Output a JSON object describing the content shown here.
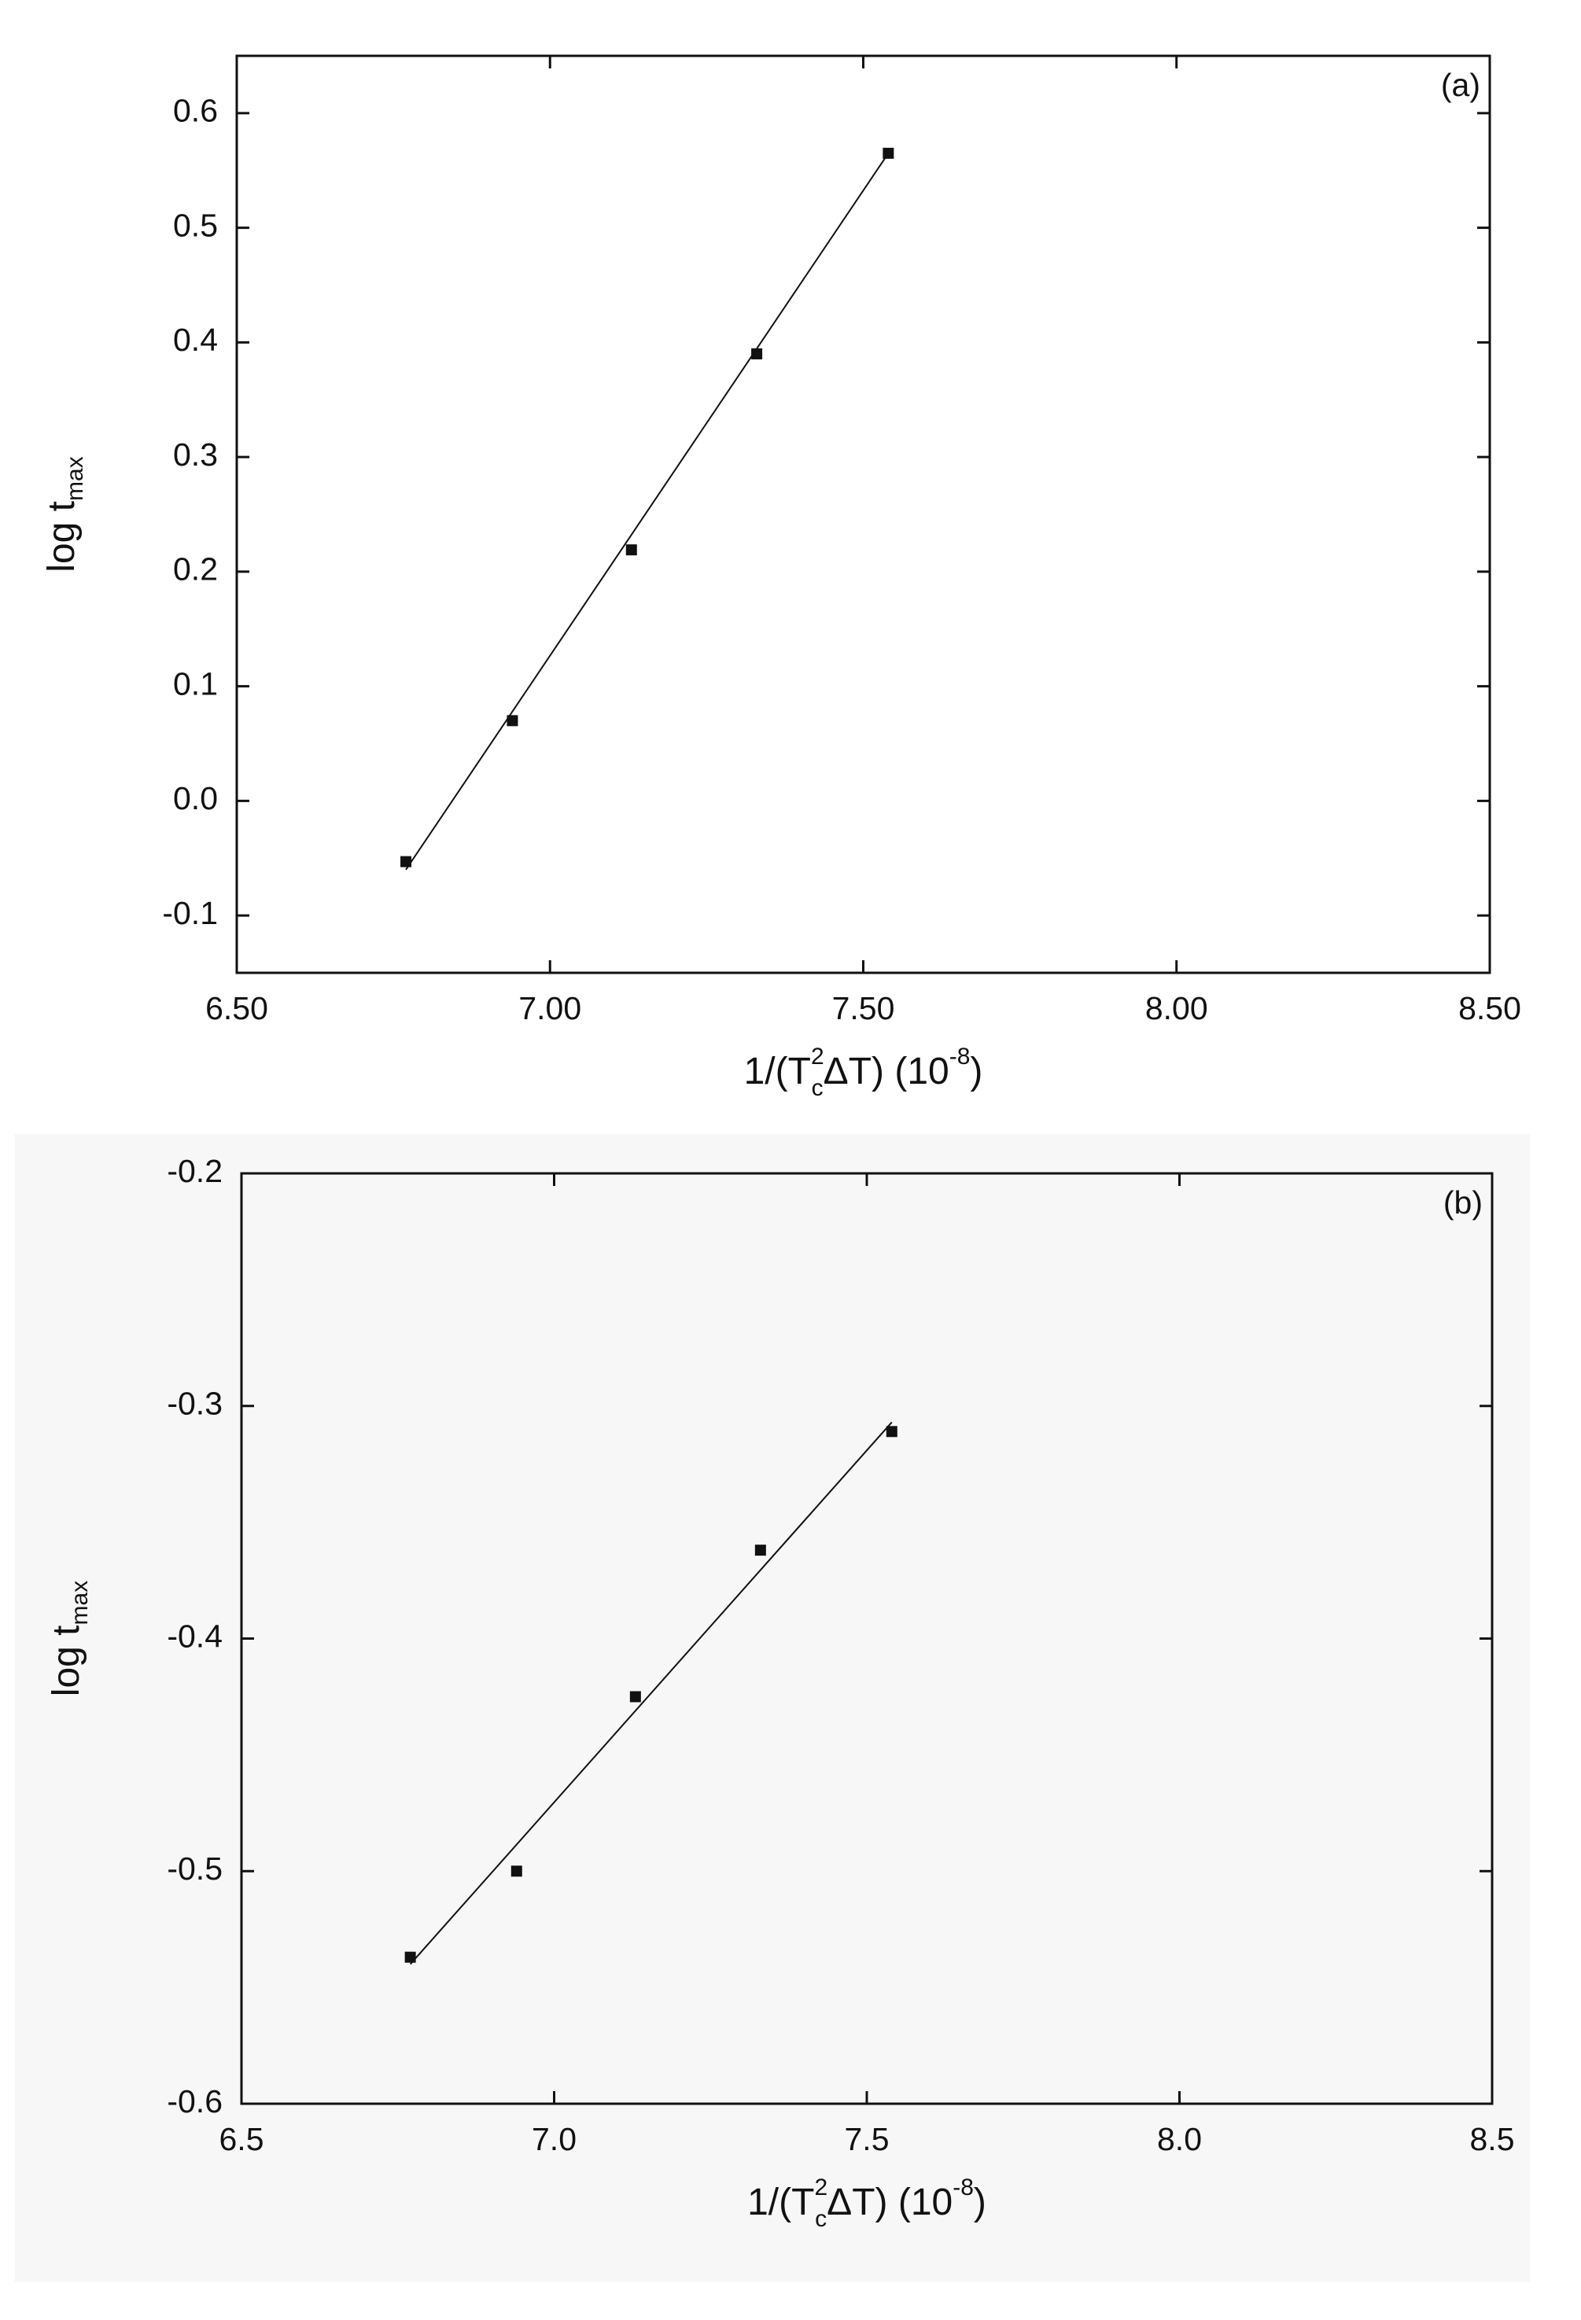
{
  "chart_data": [
    {
      "type": "scatter",
      "panel_label": "(a)",
      "x": [
        6.77,
        6.94,
        7.13,
        7.33,
        7.54
      ],
      "values": [
        -0.053,
        0.07,
        0.219,
        0.39,
        0.565
      ],
      "fit_line": {
        "x": [
          6.77,
          7.54
        ],
        "values": [
          -0.06,
          0.565
        ]
      },
      "color": "#111111",
      "xlim": [
        6.5,
        8.5
      ],
      "xticks": [
        {
          "value": 6.5,
          "label": "6.50"
        },
        {
          "value": 7,
          "label": "7.00"
        },
        {
          "value": 7.5,
          "label": "7.50"
        },
        {
          "value": 8,
          "label": "8.00"
        },
        {
          "value": 8.5,
          "label": "8.50"
        }
      ],
      "ylim": [
        -0.15,
        0.65
      ],
      "yticks": [
        -0.1,
        {
          "value": 0,
          "label": "0.0"
        },
        0.1,
        0.2,
        0.3,
        0.4,
        0.5,
        0.6
      ],
      "y_label": {
        "main": "log t",
        "sub": "max"
      },
      "x_label": {
        "before": "1/(T",
        "sup": "2",
        "sub": "c",
        "after": "ΔT) (10",
        "exp": "-8",
        "end": ")"
      }
    },
    {
      "type": "scatter",
      "panel_label": "(b)",
      "x": [
        6.77,
        6.94,
        7.13,
        7.33,
        7.54
      ],
      "values": [
        -0.537,
        -0.5,
        -0.425,
        -0.362,
        -0.311
      ],
      "fit_line": {
        "x": [
          6.77,
          7.54
        ],
        "values": [
          -0.54,
          -0.307
        ]
      },
      "color": "#111111",
      "xlim": [
        6.5,
        8.5
      ],
      "xticks": [
        6.5,
        {
          "value": 7,
          "label": "7.0"
        },
        7.5,
        {
          "value": 8,
          "label": "8.0"
        },
        8.5
      ],
      "ylim": [
        -0.6,
        -0.2
      ],
      "yticks": [
        -0.6,
        -0.5,
        -0.4,
        -0.3,
        -0.2
      ],
      "y_label": {
        "main": "log t",
        "sub": "max"
      },
      "x_label": {
        "before": "1/(T",
        "sup": "2",
        "sub": "c",
        "after": "ΔT) (10",
        "exp": "-8",
        "end": ")"
      }
    }
  ]
}
